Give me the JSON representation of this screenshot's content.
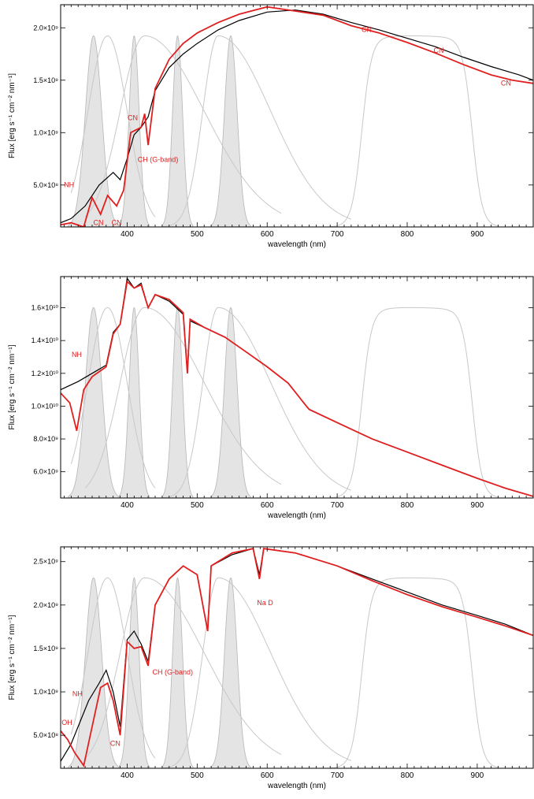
{
  "chart_data": [
    {
      "type": "line",
      "xlabel": "wavelength (nm)",
      "ylabel": "Flux [erg s⁻¹ cm⁻² nm⁻¹]",
      "xlim": [
        305,
        980
      ],
      "ylim": [
        100000000.0,
        2220000000.0
      ],
      "xticks": [
        400,
        500,
        600,
        700,
        800,
        900
      ],
      "yticks": [
        {
          "value": 500000000.0,
          "label": "5.0×10⁸"
        },
        {
          "value": 1000000000.0,
          "label": "1.0×10⁹"
        },
        {
          "value": 1500000000.0,
          "label": "1.5×10⁹"
        },
        {
          "value": 2000000000.0,
          "label": "2.0×10⁹"
        }
      ],
      "series": [
        {
          "color": "#000000",
          "points": [
            [
              305,
              140000000.0
            ],
            [
              320,
              180000000.0
            ],
            [
              340,
              300000000.0
            ],
            [
              360,
              500000000.0
            ],
            [
              380,
              620000000.0
            ],
            [
              390,
              550000000.0
            ],
            [
              400,
              750000000.0
            ],
            [
              410,
              980000000.0
            ],
            [
              420,
              1050000000.0
            ],
            [
              430,
              1150000000.0
            ],
            [
              440,
              1400000000.0
            ],
            [
              460,
              1620000000.0
            ],
            [
              480,
              1750000000.0
            ],
            [
              500,
              1850000000.0
            ],
            [
              530,
              1980000000.0
            ],
            [
              560,
              2070000000.0
            ],
            [
              600,
              2150000000.0
            ],
            [
              640,
              2170000000.0
            ],
            [
              680,
              2130000000.0
            ],
            [
              720,
              2050000000.0
            ],
            [
              760,
              1980000000.0
            ],
            [
              800,
              1900000000.0
            ],
            [
              840,
              1820000000.0
            ],
            [
              880,
              1720000000.0
            ],
            [
              920,
              1630000000.0
            ],
            [
              960,
              1550000000.0
            ],
            [
              980,
              1500000000.0
            ]
          ]
        },
        {
          "color": "#e02020",
          "points": [
            [
              305,
              120000000.0
            ],
            [
              320,
              140000000.0
            ],
            [
              338,
              100000000.0
            ],
            [
              350,
              380000000.0
            ],
            [
              362,
              220000000.0
            ],
            [
              372,
              400000000.0
            ],
            [
              385,
              300000000.0
            ],
            [
              395,
              450000000.0
            ],
            [
              405,
              1000000000.0
            ],
            [
              420,
              1050000000.0
            ],
            [
              425,
              1180000000.0
            ],
            [
              430,
              880000000.0
            ],
            [
              440,
              1420000000.0
            ],
            [
              460,
              1700000000.0
            ],
            [
              480,
              1850000000.0
            ],
            [
              500,
              1950000000.0
            ],
            [
              530,
              2050000000.0
            ],
            [
              560,
              2130000000.0
            ],
            [
              600,
              2200000000.0
            ],
            [
              640,
              2160000000.0
            ],
            [
              680,
              2120000000.0
            ],
            [
              720,
              2020000000.0
            ],
            [
              760,
              1950000000.0
            ],
            [
              800,
              1860000000.0
            ],
            [
              840,
              1760000000.0
            ],
            [
              880,
              1650000000.0
            ],
            [
              920,
              1550000000.0
            ],
            [
              950,
              1500000000.0
            ],
            [
              980,
              1470000000.0
            ]
          ]
        }
      ],
      "annotations": [
        {
          "text": "NH",
          "x": 317,
          "y": 480000000.0
        },
        {
          "text": "CN",
          "x": 359,
          "y": 120000000.0
        },
        {
          "text": "CN",
          "x": 385,
          "y": 120000000.0
        },
        {
          "text": "CN",
          "x": 408,
          "y": 1120000000.0
        },
        {
          "text": "CH (G-band)",
          "x": 444,
          "y": 720000000.0
        },
        {
          "text": "CN",
          "x": 742,
          "y": 1960000000.0
        },
        {
          "text": "CN",
          "x": 845,
          "y": 1760000000.0
        },
        {
          "text": "CN",
          "x": 941,
          "y": 1450000000.0
        }
      ]
    },
    {
      "type": "line",
      "xlabel": "wavelength (nm)",
      "ylabel": "Flux [erg s⁻¹ cm⁻² nm⁻¹]",
      "xlim": [
        305,
        980
      ],
      "ylim": [
        4400000000.0,
        17900000000.0
      ],
      "xticks": [
        400,
        500,
        600,
        700,
        800,
        900
      ],
      "yticks": [
        {
          "value": 6000000000.0,
          "label": "6.0×10⁹"
        },
        {
          "value": 8000000000.0,
          "label": "8.0×10⁹"
        },
        {
          "value": 10000000000.0,
          "label": "1.0×10¹⁰"
        },
        {
          "value": 12000000000.0,
          "label": "1.2×10¹⁰"
        },
        {
          "value": 14000000000.0,
          "label": "1.4×10¹⁰"
        },
        {
          "value": 16000000000.0,
          "label": "1.6×10¹⁰"
        }
      ],
      "series": [
        {
          "color": "#000000",
          "points": [
            [
              305,
              11000000000.0
            ],
            [
              330,
              11500000000.0
            ],
            [
              350,
              12000000000.0
            ],
            [
              370,
              12500000000.0
            ],
            [
              380,
              14500000000.0
            ],
            [
              390,
              15000000000.0
            ],
            [
              400,
              17800000000.0
            ],
            [
              410,
              17200000000.0
            ],
            [
              420,
              17500000000.0
            ],
            [
              430,
              16000000000.0
            ],
            [
              440,
              16800000000.0
            ],
            [
              460,
              16400000000.0
            ],
            [
              480,
              15600000000.0
            ],
            [
              486,
              12000000000.0
            ],
            [
              490,
              15200000000.0
            ],
            [
              510,
              14800000000.0
            ],
            [
              540,
              14200000000.0
            ],
            [
              570,
              13300000000.0
            ],
            [
              600,
              12400000000.0
            ],
            [
              630,
              11400000000.0
            ],
            [
              656,
              10000000000.0
            ],
            [
              660,
              9800000000.0
            ],
            [
              700,
              9000000000.0
            ],
            [
              750,
              8000000000.0
            ],
            [
              800,
              7200000000.0
            ],
            [
              850,
              6400000000.0
            ],
            [
              900,
              5600000000.0
            ],
            [
              940,
              5000000000.0
            ],
            [
              980,
              4500000000.0
            ]
          ]
        },
        {
          "color": "#e02020",
          "points": [
            [
              305,
              10800000000.0
            ],
            [
              318,
              10200000000.0
            ],
            [
              328,
              8500000000.0
            ],
            [
              338,
              11000000000.0
            ],
            [
              350,
              11800000000.0
            ],
            [
              370,
              12400000000.0
            ],
            [
              380,
              14400000000.0
            ],
            [
              390,
              15000000000.0
            ],
            [
              400,
              17600000000.0
            ],
            [
              410,
              17200000000.0
            ],
            [
              420,
              17400000000.0
            ],
            [
              430,
              16000000000.0
            ],
            [
              440,
              16800000000.0
            ],
            [
              460,
              16500000000.0
            ],
            [
              480,
              15700000000.0
            ],
            [
              486,
              12000000000.0
            ],
            [
              490,
              15300000000.0
            ],
            [
              510,
              14800000000.0
            ],
            [
              540,
              14200000000.0
            ],
            [
              570,
              13300000000.0
            ],
            [
              600,
              12400000000.0
            ],
            [
              630,
              11400000000.0
            ],
            [
              656,
              10000000000.0
            ],
            [
              660,
              9800000000.0
            ],
            [
              700,
              9000000000.0
            ],
            [
              750,
              8000000000.0
            ],
            [
              800,
              7200000000.0
            ],
            [
              850,
              6400000000.0
            ],
            [
              900,
              5600000000.0
            ],
            [
              940,
              5000000000.0
            ],
            [
              980,
              4500000000.0
            ]
          ]
        }
      ],
      "annotations": [
        {
          "text": "NH",
          "x": 328,
          "y": 13000000000.0
        }
      ]
    },
    {
      "type": "line",
      "xlabel": "wavelength (nm)",
      "ylabel": "Flux [erg s⁻¹ cm⁻² nm⁻¹]",
      "xlim": [
        305,
        980
      ],
      "ylim": [
        120000000.0,
        2670000000.0
      ],
      "xticks": [
        400,
        500,
        600,
        700,
        800,
        900
      ],
      "yticks": [
        {
          "value": 500000000.0,
          "label": "5.0×10⁸"
        },
        {
          "value": 1000000000.0,
          "label": "1.0×10⁹"
        },
        {
          "value": 1500000000.0,
          "label": "1.5×10⁹"
        },
        {
          "value": 2000000000.0,
          "label": "2.0×10⁹"
        },
        {
          "value": 2500000000.0,
          "label": "2.5×10⁹"
        }
      ],
      "series": [
        {
          "color": "#000000",
          "points": [
            [
              305,
              200000000.0
            ],
            [
              320,
              400000000.0
            ],
            [
              330,
              600000000.0
            ],
            [
              345,
              900000000.0
            ],
            [
              360,
              1100000000.0
            ],
            [
              370,
              1250000000.0
            ],
            [
              380,
              1000000000.0
            ],
            [
              390,
              600000000.0
            ],
            [
              400,
              1600000000.0
            ],
            [
              410,
              1700000000.0
            ],
            [
              420,
              1550000000.0
            ],
            [
              430,
              1350000000.0
            ],
            [
              440,
              2000000000.0
            ],
            [
              460,
              2300000000.0
            ],
            [
              480,
              2450000000.0
            ],
            [
              500,
              2350000000.0
            ],
            [
              515,
              1700000000.0
            ],
            [
              520,
              2450000000.0
            ],
            [
              550,
              2580000000.0
            ],
            [
              580,
              2650000000.0
            ],
            [
              589,
              2350000000.0
            ],
            [
              595,
              2650000000.0
            ],
            [
              640,
              2600000000.0
            ],
            [
              700,
              2450000000.0
            ],
            [
              750,
              2300000000.0
            ],
            [
              800,
              2150000000.0
            ],
            [
              850,
              2000000000.0
            ],
            [
              900,
              1880000000.0
            ],
            [
              940,
              1780000000.0
            ],
            [
              980,
              1650000000.0
            ]
          ]
        },
        {
          "color": "#e02020",
          "points": [
            [
              305,
              550000000.0
            ],
            [
              315,
              450000000.0
            ],
            [
              325,
              300000000.0
            ],
            [
              338,
              150000000.0
            ],
            [
              350,
              600000000.0
            ],
            [
              362,
              1050000000.0
            ],
            [
              372,
              1100000000.0
            ],
            [
              380,
              900000000.0
            ],
            [
              390,
              500000000.0
            ],
            [
              400,
              1580000000.0
            ],
            [
              410,
              1500000000.0
            ],
            [
              420,
              1520000000.0
            ],
            [
              430,
              1300000000.0
            ],
            [
              440,
              2000000000.0
            ],
            [
              460,
              2300000000.0
            ],
            [
              480,
              2450000000.0
            ],
            [
              500,
              2350000000.0
            ],
            [
              515,
              1700000000.0
            ],
            [
              520,
              2450000000.0
            ],
            [
              550,
              2600000000.0
            ],
            [
              580,
              2650000000.0
            ],
            [
              589,
              2300000000.0
            ],
            [
              595,
              2650000000.0
            ],
            [
              640,
              2600000000.0
            ],
            [
              700,
              2450000000.0
            ],
            [
              750,
              2280000000.0
            ],
            [
              800,
              2120000000.0
            ],
            [
              850,
              1980000000.0
            ],
            [
              900,
              1860000000.0
            ],
            [
              940,
              1760000000.0
            ],
            [
              980,
              1650000000.0
            ]
          ]
        }
      ],
      "annotations": [
        {
          "text": "Na D",
          "x": 597,
          "y": 2000000000.0
        },
        {
          "text": "CH (G-band)",
          "x": 465,
          "y": 1200000000.0
        },
        {
          "text": "NH",
          "x": 329,
          "y": 950000000.0
        },
        {
          "text": "OH",
          "x": 314,
          "y": 620000000.0
        },
        {
          "text": "CN",
          "x": 383,
          "y": 380000000.0
        }
      ]
    }
  ]
}
